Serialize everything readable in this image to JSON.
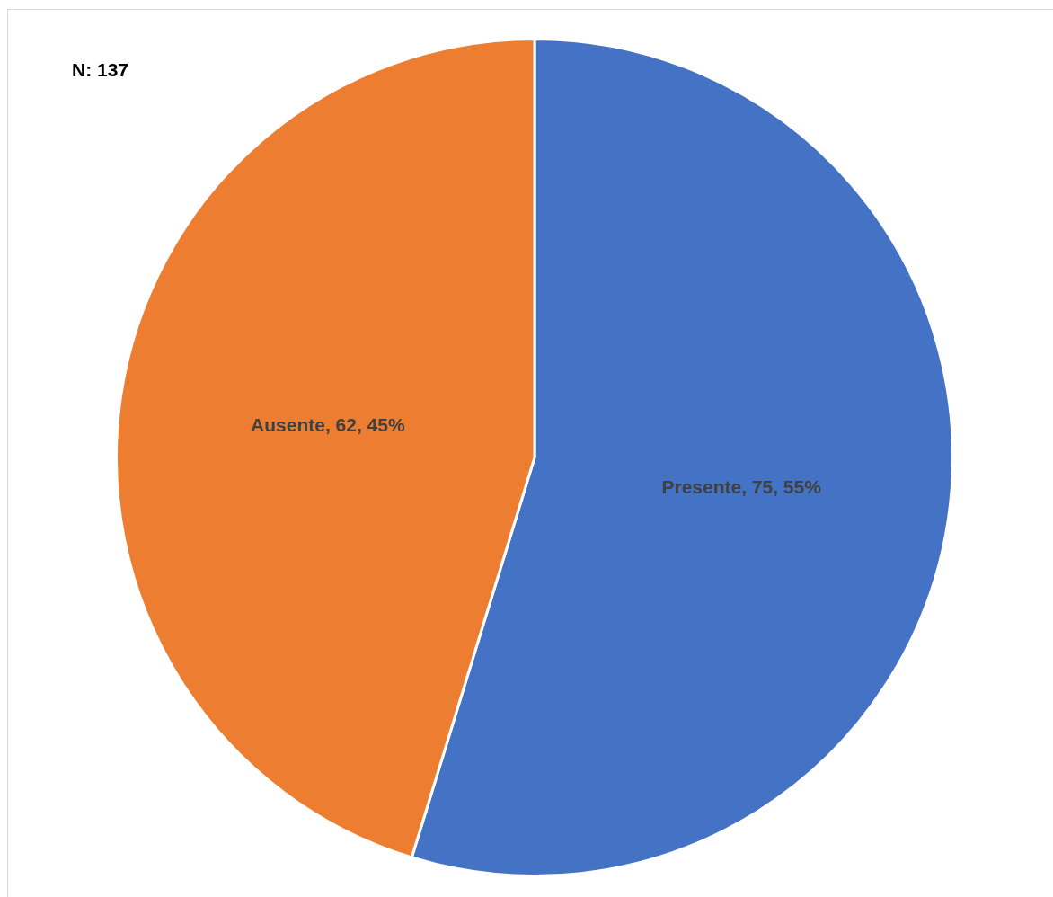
{
  "chart_data": {
    "type": "pie",
    "categories": [
      "Presente",
      "Ausente"
    ],
    "values": [
      75,
      62
    ],
    "colors": [
      "#4472c4",
      "#ed7d31"
    ],
    "value_labels": [
      "75, 55%",
      "62, 45%"
    ],
    "annotations": [
      "N: 137"
    ],
    "legend": false
  }
}
